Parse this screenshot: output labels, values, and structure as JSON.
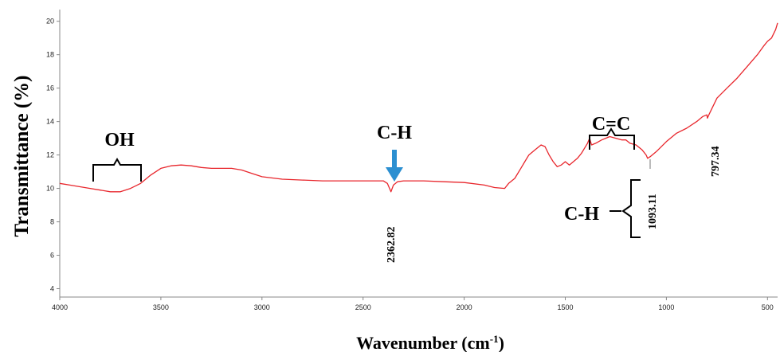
{
  "chart_data": {
    "type": "line",
    "title": "",
    "xlabel": "Wavenumber (cm",
    "xlabel_sup": "-1",
    "xlabel_close": ")",
    "ylabel": "Transmittance  (%)",
    "xlim": [
      4000,
      450
    ],
    "ylim": [
      3.5,
      20.7
    ],
    "x_reversed": true,
    "grid": false,
    "x_ticks": [
      "4000",
      "3500",
      "3000",
      "2500",
      "2000",
      "1500",
      "1000",
      "500"
    ],
    "x_tick_values": [
      4000,
      3500,
      3000,
      2500,
      2000,
      1500,
      1000,
      500
    ],
    "y_ticks": [
      "4",
      "6",
      "8",
      "10",
      "12",
      "14",
      "16",
      "18",
      "20"
    ],
    "y_tick_values": [
      4,
      6,
      8,
      10,
      12,
      14,
      16,
      18,
      20
    ],
    "series": [
      {
        "color": "#e8262c",
        "x": [
          4000,
          3950,
          3900,
          3850,
          3800,
          3750,
          3700,
          3650,
          3600,
          3550,
          3500,
          3450,
          3400,
          3350,
          3300,
          3250,
          3200,
          3150,
          3100,
          3050,
          3000,
          2900,
          2800,
          2700,
          2600,
          2500,
          2400,
          2380,
          2362,
          2350,
          2330,
          2300,
          2200,
          2100,
          2000,
          1900,
          1850,
          1800,
          1780,
          1750,
          1720,
          1700,
          1680,
          1650,
          1620,
          1600,
          1580,
          1560,
          1540,
          1520,
          1500,
          1480,
          1460,
          1440,
          1420,
          1400,
          1390,
          1380,
          1370,
          1350,
          1320,
          1300,
          1280,
          1250,
          1220,
          1200,
          1180,
          1150,
          1120,
          1100,
          1093,
          1080,
          1050,
          1000,
          950,
          900,
          850,
          820,
          800,
          797,
          790,
          770,
          750,
          700,
          650,
          600,
          550,
          520,
          500,
          480,
          460,
          450
        ],
        "values": [
          10.3,
          10.2,
          10.1,
          10.0,
          9.9,
          9.8,
          9.8,
          10.0,
          10.3,
          10.8,
          11.2,
          11.35,
          11.4,
          11.35,
          11.25,
          11.2,
          11.2,
          11.2,
          11.1,
          10.9,
          10.7,
          10.55,
          10.5,
          10.45,
          10.45,
          10.45,
          10.45,
          10.3,
          9.8,
          10.2,
          10.4,
          10.45,
          10.45,
          10.4,
          10.35,
          10.2,
          10.05,
          10.0,
          10.3,
          10.6,
          11.2,
          11.6,
          12.0,
          12.3,
          12.6,
          12.5,
          12.0,
          11.6,
          11.3,
          11.4,
          11.6,
          11.4,
          11.6,
          11.8,
          12.1,
          12.5,
          12.7,
          13.0,
          12.6,
          12.7,
          12.9,
          13.0,
          13.1,
          13.0,
          12.9,
          12.9,
          12.7,
          12.6,
          12.3,
          12.0,
          11.8,
          11.9,
          12.2,
          12.8,
          13.3,
          13.6,
          14.0,
          14.3,
          14.4,
          14.2,
          14.4,
          14.9,
          15.4,
          16.0,
          16.6,
          17.3,
          18.0,
          18.5,
          18.8,
          19.0,
          19.5,
          19.9
        ]
      }
    ],
    "annotations": {
      "oh": "OH",
      "ch_mid": "C-H",
      "cc": "C=C",
      "ch_right": "C-H",
      "peak_2362": "2362.82",
      "peak_1093": "1093.11",
      "peak_797": "797.34"
    }
  }
}
